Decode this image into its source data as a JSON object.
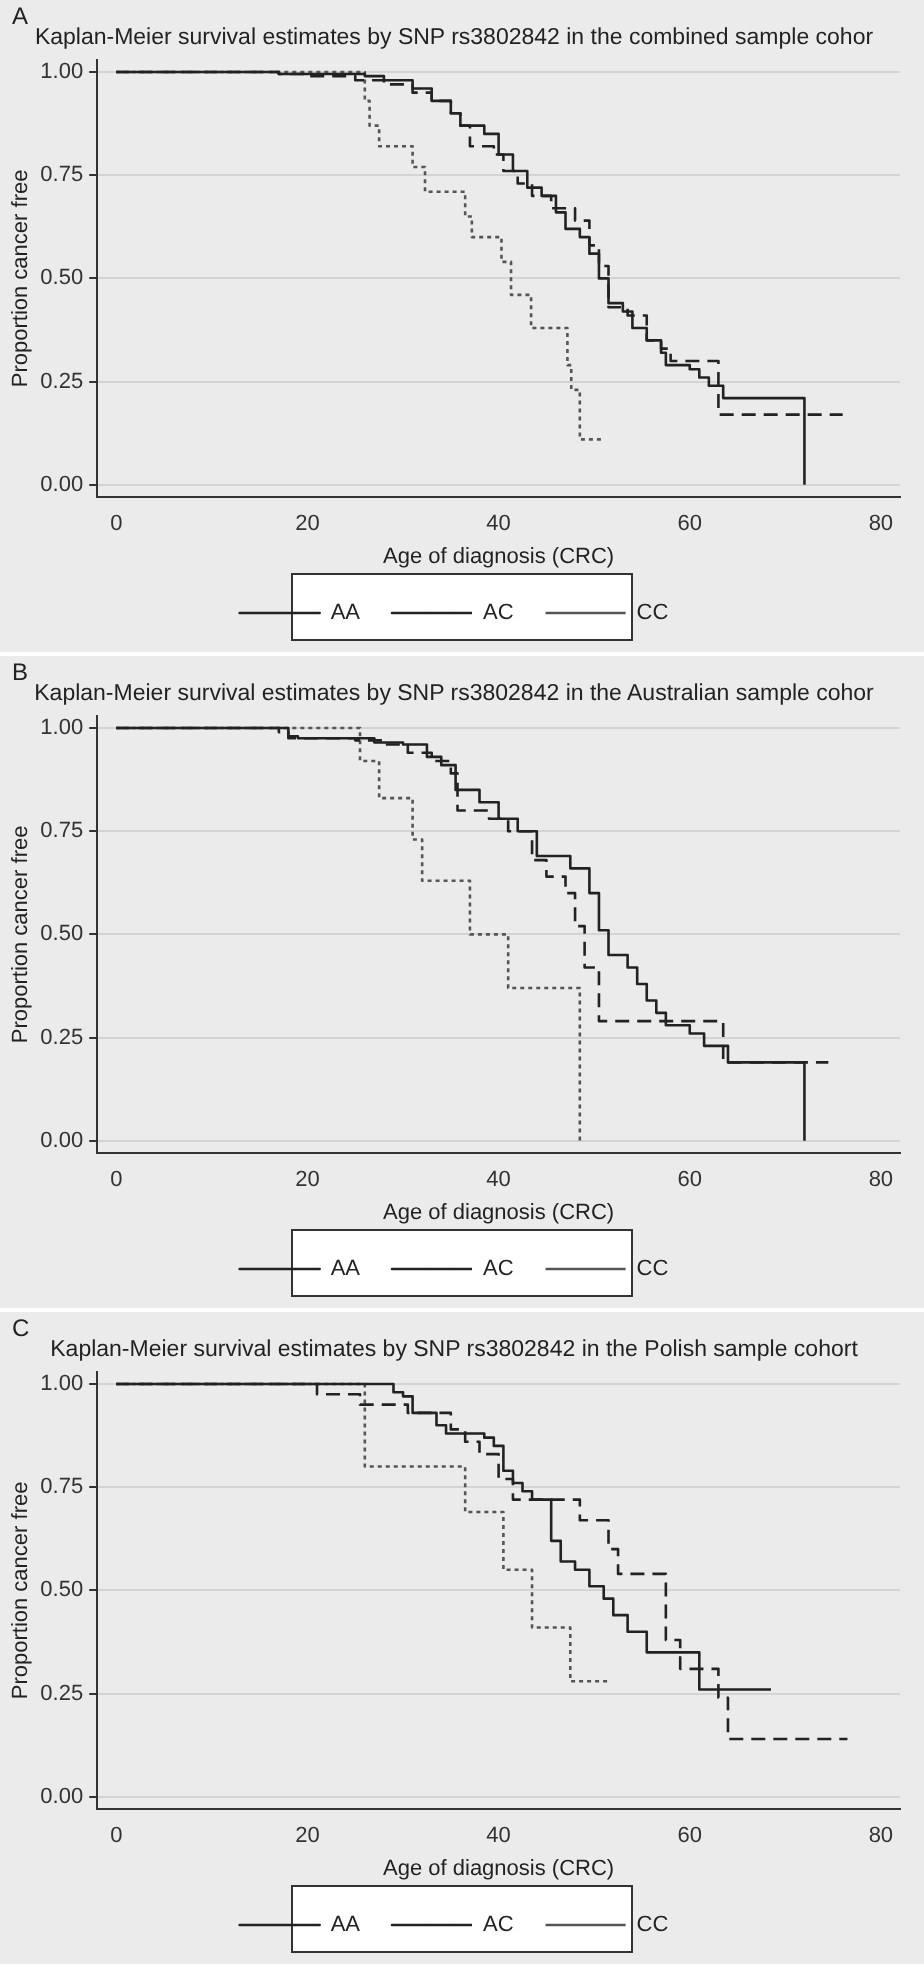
{
  "chart_data": [
    {
      "type": "step",
      "title": "Kaplan-Meier survival estimates by SNP rs3802842 in the combined sample cohor",
      "xlabel": "Age of diagnosis (CRC)",
      "ylabel": "Proportion cancer free",
      "annotations": [
        "A"
      ],
      "xlim": [
        -2,
        82
      ],
      "xticks": [
        0,
        20,
        40,
        60,
        80
      ],
      "ylim": [
        -0.03,
        1.03
      ],
      "yticks": [
        {
          "value": 0,
          "label": "0.00"
        },
        {
          "value": 0.25,
          "label": "0.25"
        },
        {
          "value": 0.5,
          "label": "0.50"
        },
        {
          "value": 0.75,
          "label": "0.75"
        },
        {
          "value": 1,
          "label": "1.00"
        }
      ],
      "grid": "y",
      "legend": "bottom",
      "marker": "none",
      "series": [
        {
          "name": "AA",
          "color": "#222222",
          "line_style": "solid",
          "x": [
            0,
            17,
            26,
            28,
            31,
            33,
            35,
            36,
            38.5,
            40,
            41.5,
            43,
            44.5,
            46,
            47,
            48.5,
            49.5,
            50.5,
            51.5,
            53,
            54,
            55.5,
            57,
            57.5,
            60,
            61,
            62,
            63.5,
            72
          ],
          "values": [
            1,
            0.995,
            0.99,
            0.98,
            0.96,
            0.93,
            0.9,
            0.87,
            0.85,
            0.8,
            0.76,
            0.72,
            0.7,
            0.66,
            0.62,
            0.6,
            0.56,
            0.5,
            0.44,
            0.42,
            0.38,
            0.35,
            0.32,
            0.29,
            0.28,
            0.26,
            0.24,
            0.21,
            0
          ]
        },
        {
          "name": "AC",
          "color": "#222222",
          "line_style": "dashed",
          "x": [
            0,
            17,
            20,
            25,
            28,
            31,
            33,
            35,
            36,
            37,
            39.5,
            40.5,
            42,
            43.5,
            45.5,
            48,
            49.5,
            50.5,
            51.5,
            53.5,
            55.5,
            57,
            58,
            63,
            76
          ],
          "values": [
            1,
            0.995,
            0.99,
            0.98,
            0.97,
            0.95,
            0.93,
            0.9,
            0.87,
            0.82,
            0.8,
            0.76,
            0.73,
            0.7,
            0.67,
            0.64,
            0.58,
            0.53,
            0.43,
            0.41,
            0.35,
            0.33,
            0.3,
            0.17,
            0.17
          ]
        },
        {
          "name": "CC",
          "color": "#555555",
          "line_style": "dotted",
          "x": [
            0,
            26,
            26.5,
            27.5,
            31,
            32.3,
            36.5,
            37.2,
            40.3,
            41.3,
            43.4,
            47.2,
            47.6,
            48.5,
            51
          ],
          "values": [
            1,
            0.93,
            0.87,
            0.82,
            0.77,
            0.71,
            0.65,
            0.6,
            0.54,
            0.46,
            0.38,
            0.29,
            0.23,
            0.11,
            0.11
          ]
        }
      ]
    },
    {
      "type": "step",
      "title": "Kaplan-Meier survival estimates by SNP rs3802842 in the Australian sample cohor",
      "xlabel": "Age of diagnosis (CRC)",
      "ylabel": "Proportion cancer free",
      "annotations": [
        "B"
      ],
      "xlim": [
        -2,
        82
      ],
      "xticks": [
        0,
        20,
        40,
        60,
        80
      ],
      "ylim": [
        -0.03,
        1.03
      ],
      "yticks": [
        {
          "value": 0,
          "label": "0.00"
        },
        {
          "value": 0.25,
          "label": "0.25"
        },
        {
          "value": 0.5,
          "label": "0.50"
        },
        {
          "value": 0.75,
          "label": "0.75"
        },
        {
          "value": 1,
          "label": "1.00"
        }
      ],
      "grid": "y",
      "legend": "bottom",
      "marker": "none",
      "series": [
        {
          "name": "AA",
          "color": "#222222",
          "line_style": "solid",
          "x": [
            0,
            18,
            19,
            27,
            30,
            32.5,
            34,
            35.5,
            38,
            40,
            42,
            44,
            47.5,
            49.5,
            50.5,
            51.5,
            53.5,
            54.5,
            55.5,
            56.5,
            57.5,
            60,
            61.5,
            64,
            72
          ],
          "values": [
            1,
            0.98,
            0.975,
            0.965,
            0.96,
            0.93,
            0.91,
            0.85,
            0.82,
            0.78,
            0.75,
            0.69,
            0.66,
            0.6,
            0.51,
            0.45,
            0.42,
            0.38,
            0.34,
            0.31,
            0.28,
            0.26,
            0.23,
            0.19,
            0
          ]
        },
        {
          "name": "AC",
          "color": "#222222",
          "line_style": "dashed",
          "x": [
            0,
            17,
            18,
            25,
            28,
            30.5,
            33,
            35,
            35.7,
            39,
            41,
            43.5,
            45,
            47,
            48,
            49,
            50.5,
            63.5,
            74.5
          ],
          "values": [
            1,
            0.99,
            0.975,
            0.97,
            0.96,
            0.94,
            0.92,
            0.89,
            0.8,
            0.78,
            0.75,
            0.68,
            0.64,
            0.6,
            0.52,
            0.42,
            0.29,
            0.19,
            0.19
          ]
        },
        {
          "name": "CC",
          "color": "#555555",
          "line_style": "dotted",
          "x": [
            0,
            25.5,
            27.5,
            31,
            32,
            37,
            41,
            48.5
          ],
          "values": [
            1,
            0.92,
            0.83,
            0.73,
            0.63,
            0.5,
            0.37,
            0
          ]
        }
      ]
    },
    {
      "type": "step",
      "title": "Kaplan-Meier survival estimates by SNP rs3802842 in the Polish sample cohort",
      "xlabel": "Age of diagnosis (CRC)",
      "ylabel": "Proportion cancer free",
      "annotations": [
        "C"
      ],
      "xlim": [
        -2,
        82
      ],
      "xticks": [
        0,
        20,
        40,
        60,
        80
      ],
      "ylim": [
        -0.03,
        1.03
      ],
      "yticks": [
        {
          "value": 0,
          "label": "0.00"
        },
        {
          "value": 0.25,
          "label": "0.25"
        },
        {
          "value": 0.5,
          "label": "0.50"
        },
        {
          "value": 0.75,
          "label": "0.75"
        },
        {
          "value": 1,
          "label": "1.00"
        }
      ],
      "grid": "y",
      "legend": "bottom",
      "marker": "none",
      "series": [
        {
          "name": "AA",
          "color": "#222222",
          "line_style": "solid",
          "x": [
            0,
            29,
            30,
            31,
            33.5,
            34.5,
            38.5,
            39.5,
            40.5,
            41.5,
            42.5,
            43.5,
            45.5,
            46.5,
            48,
            49.5,
            51,
            52,
            53.5,
            55.5,
            61,
            68.5
          ],
          "values": [
            1,
            0.98,
            0.97,
            0.93,
            0.9,
            0.88,
            0.87,
            0.85,
            0.79,
            0.76,
            0.74,
            0.72,
            0.62,
            0.57,
            0.55,
            0.51,
            0.48,
            0.44,
            0.4,
            0.35,
            0.26,
            0.26
          ]
        },
        {
          "name": "AC",
          "color": "#222222",
          "line_style": "dashed",
          "x": [
            0,
            21,
            25.5,
            30.5,
            35,
            36.5,
            38,
            40,
            41.5,
            48.5,
            51.5,
            52.5,
            57.5,
            59,
            63,
            64,
            76.5
          ],
          "values": [
            1,
            0.975,
            0.95,
            0.93,
            0.89,
            0.86,
            0.83,
            0.77,
            0.72,
            0.67,
            0.6,
            0.54,
            0.38,
            0.31,
            0.24,
            0.14,
            0.14
          ]
        },
        {
          "name": "CC",
          "color": "#555555",
          "line_style": "dotted",
          "x": [
            0,
            26,
            36.5,
            40.5,
            43.5,
            47.5,
            51.5
          ],
          "values": [
            1,
            0.8,
            0.69,
            0.55,
            0.41,
            0.28,
            0.28
          ]
        }
      ]
    }
  ]
}
